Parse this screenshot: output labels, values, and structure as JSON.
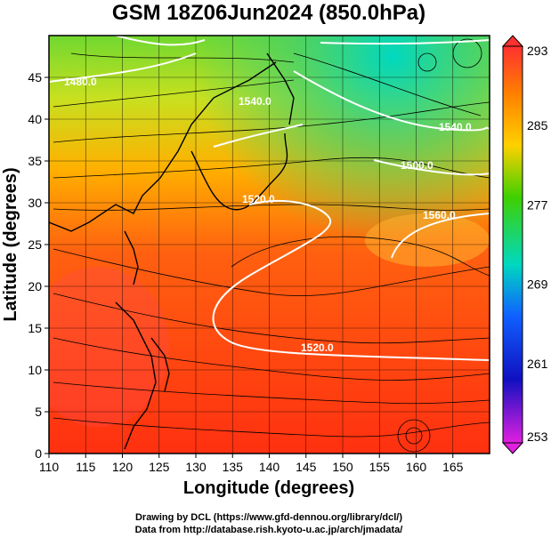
{
  "title": "GSM 18Z06Jun2024 (850.0hPa)",
  "xlabel": "Longitude (degrees)",
  "ylabel": "Latitude  (degrees)",
  "credits": [
    "Drawing by DCL (https://www.gfd-dennou.org/library/dcl/)",
    "Data from http://database.rish.kyoto-u.ac.jp/arch/jmadata/"
  ],
  "colorbar": {
    "labels": [
      "293",
      "285",
      "277",
      "269",
      "261",
      "253"
    ],
    "min": 253,
    "max": 293,
    "colors": [
      "#ff2020",
      "#ff8000",
      "#ffd000",
      "#40d000",
      "#00d8c0",
      "#1060ff",
      "#1010c0",
      "#e020e0"
    ]
  },
  "contour_labels": [
    "1480.0",
    "1520.0",
    "1540.0",
    "1500.0",
    "1540.0",
    "1560.0",
    "1520.0"
  ],
  "chart_data": {
    "type": "heatmap",
    "title": "GSM 18Z06Jun2024 (850.0hPa)",
    "xlabel": "Longitude (degrees)",
    "ylabel": "Latitude  (degrees)",
    "xlim": [
      110,
      170
    ],
    "ylim": [
      0,
      50
    ],
    "xticks": [
      "110",
      "115",
      "120",
      "125",
      "130",
      "135",
      "140",
      "145",
      "150",
      "155",
      "160",
      "165"
    ],
    "yticks": [
      "0",
      "5",
      "10",
      "15",
      "20",
      "25",
      "30",
      "35",
      "40",
      "45"
    ],
    "grid": true,
    "colorbar_range": [
      253,
      293
    ],
    "overlays": [
      "temperature shading",
      "geopotential height contours (white)",
      "wind streamlines (black)",
      "coastlines"
    ]
  }
}
